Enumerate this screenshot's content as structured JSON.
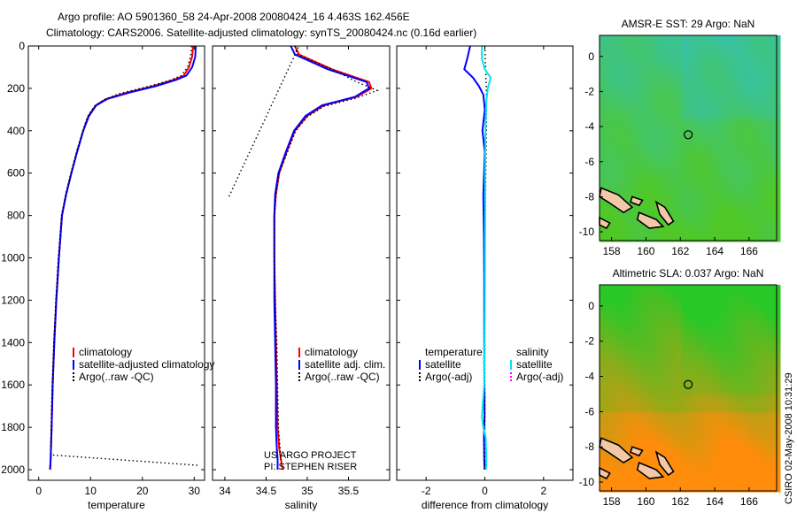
{
  "header": {
    "line1": "Argo profile: AO 5901360_58 24-Apr-2008 20080424_16 4.463S 162.456E",
    "line2": "Climatology: CARS2006. Satellite-adjusted climatology: synTS_20080424.nc (0.16d earlier)"
  },
  "footer_credit": {
    "line1": "US ARGO PROJECT",
    "line2": "PI: STEPHEN RISER"
  },
  "side_stamp": "CSIRO 02-May-2008 10:31:29",
  "colors": {
    "climatology": "#ff0000",
    "satellite": "#0000ff",
    "argo": "#000000",
    "satellite_diff": "#00e5ee",
    "argo_adj": "#ff00ff"
  },
  "chart_data": [
    {
      "type": "line",
      "xlabel": "temperature",
      "xlim": [
        -2,
        32
      ],
      "ylim": [
        2050,
        0
      ],
      "xticks": [
        0,
        10,
        20,
        30
      ],
      "yticks": [
        0,
        200,
        400,
        600,
        800,
        1000,
        1200,
        1400,
        1600,
        1800,
        2000
      ],
      "legend_position": "lower-left",
      "series": [
        {
          "name": "climatology",
          "style": "solid",
          "color": "#ff0000",
          "x": [
            29.8,
            29.6,
            29.0,
            28.0,
            26.0,
            22.0,
            17.0,
            13.0,
            11.0,
            9.6,
            8.6,
            7.4,
            6.3,
            5.3,
            4.5,
            3.9,
            3.4,
            3.0,
            2.7,
            2.5,
            2.3,
            2.2
          ],
          "y": [
            0,
            50,
            100,
            140,
            160,
            190,
            220,
            250,
            280,
            330,
            400,
            500,
            600,
            700,
            800,
            1000,
            1200,
            1400,
            1600,
            1800,
            1950,
            2000
          ]
        },
        {
          "name": "satellite-adjusted climatology",
          "style": "solid",
          "color": "#0000ff",
          "x": [
            30.3,
            30.2,
            29.6,
            28.5,
            26.5,
            22.5,
            17.5,
            13.2,
            11.1,
            9.7,
            8.6,
            7.4,
            6.3,
            5.3,
            4.5,
            3.9,
            3.4,
            3.0,
            2.7,
            2.5,
            2.3,
            2.2
          ],
          "y": [
            0,
            50,
            100,
            140,
            160,
            190,
            220,
            250,
            280,
            330,
            400,
            500,
            600,
            700,
            800,
            1000,
            1200,
            1400,
            1600,
            1800,
            1950,
            2000
          ]
        },
        {
          "name": "Argo(..raw -QC)",
          "style": "dotted",
          "color": "#000000",
          "x": [
            29.5,
            29.3,
            28.7,
            27.5,
            25.0,
            20.5,
            15.5,
            12.5,
            10.7,
            9.4,
            8.5,
            7.3,
            6.2,
            5.2,
            4.4,
            3.8,
            3.3,
            2.9,
            2.6,
            2.4,
            2.3,
            31.0
          ],
          "y": [
            0,
            50,
            100,
            140,
            165,
            195,
            225,
            255,
            285,
            335,
            400,
            500,
            600,
            700,
            800,
            1000,
            1200,
            1400,
            1600,
            1800,
            1930,
            1980
          ]
        }
      ]
    },
    {
      "type": "line",
      "xlabel": "salinity",
      "xlim": [
        33.85,
        36.0
      ],
      "ylim": [
        2050,
        0
      ],
      "xticks": [
        34,
        34.5,
        35,
        35.5
      ],
      "legend_position": "lower-right",
      "series": [
        {
          "name": "climatology",
          "style": "solid",
          "color": "#ff0000",
          "x": [
            34.85,
            34.9,
            35.3,
            35.75,
            35.78,
            35.6,
            35.2,
            35.0,
            34.85,
            34.75,
            34.66,
            34.62,
            34.6,
            34.6,
            34.61,
            34.62,
            34.63,
            34.64,
            34.66,
            34.68,
            34.7
          ],
          "y": [
            0,
            40,
            110,
            170,
            200,
            240,
            280,
            330,
            400,
            500,
            600,
            700,
            800,
            1000,
            1200,
            1400,
            1600,
            1800,
            1900,
            1950,
            2000
          ]
        },
        {
          "name": "satellite adj. clim.",
          "style": "solid",
          "color": "#0000ff",
          "x": [
            34.8,
            34.85,
            35.25,
            35.72,
            35.75,
            35.58,
            35.18,
            34.98,
            34.84,
            34.74,
            34.65,
            34.61,
            34.6,
            34.6,
            34.6,
            34.61,
            34.62,
            34.62,
            34.63,
            34.64,
            34.64
          ],
          "y": [
            0,
            40,
            110,
            170,
            200,
            240,
            280,
            330,
            400,
            500,
            600,
            700,
            800,
            1000,
            1200,
            1400,
            1600,
            1800,
            1900,
            1950,
            2000
          ]
        },
        {
          "name": "Argo(..raw -QC)",
          "style": "dotted",
          "color": "#000000",
          "x": [
            34.85,
            34.88,
            35.3,
            35.6,
            35.85,
            35.6,
            35.2,
            35.0,
            34.86,
            34.76,
            34.66,
            34.62,
            34.6,
            34.6,
            34.61,
            34.63,
            34.64,
            34.65,
            34.67,
            34.68
          ],
          "y": [
            0,
            40,
            110,
            170,
            210,
            245,
            285,
            335,
            400,
            500,
            600,
            700,
            800,
            1000,
            1200,
            1400,
            1600,
            1800,
            1900,
            1960
          ]
        },
        {
          "name": "Argo raw spur",
          "style": "dotted",
          "color": "#000000",
          "x": [
            34.05,
            34.9
          ],
          "y": [
            710,
            0
          ]
        }
      ]
    },
    {
      "type": "line",
      "xlabel": "difference from climatology",
      "xlim": [
        -3,
        3
      ],
      "ylim": [
        2050,
        0
      ],
      "xticks": [
        -2,
        0,
        2
      ],
      "legend_position": "lower",
      "legend_groups": {
        "temperature": "temperature",
        "salinity": "salinity"
      },
      "series": [
        {
          "name": "satellite",
          "group": "temperature",
          "style": "solid",
          "color": "#0000ff",
          "x": [
            -0.5,
            -0.6,
            -0.7,
            -0.4,
            -0.2,
            -0.05,
            0.0,
            -0.08,
            0.0,
            -0.05,
            -0.03,
            -0.02,
            -0.02,
            -0.02,
            -0.01,
            -0.01,
            -0.02,
            -0.03,
            -0.02,
            -0.01
          ],
          "y": [
            0,
            60,
            110,
            150,
            190,
            230,
            300,
            400,
            500,
            700,
            900,
            1100,
            1300,
            1500,
            1700,
            1750,
            1800,
            1850,
            1950,
            2000
          ]
        },
        {
          "name": "Argo(-adj)",
          "group": "temperature",
          "style": "dotted",
          "color": "#000000",
          "x": [
            0.0,
            0.05,
            0.05,
            0.0,
            0.0
          ],
          "y": [
            0,
            200,
            400,
            1000,
            2000
          ]
        },
        {
          "name": "satellite",
          "group": "salinity",
          "style": "solid",
          "color": "#00e5ee",
          "x": [
            -0.1,
            -0.1,
            0.0,
            0.2,
            0.1,
            0.05,
            0.03,
            0.02,
            0.01,
            0.01,
            0.0,
            -0.02,
            -0.1,
            -0.05,
            0.03,
            0.05,
            0.04
          ],
          "y": [
            0,
            60,
            110,
            150,
            200,
            260,
            330,
            400,
            600,
            800,
            1200,
            1600,
            1750,
            1800,
            1850,
            1950,
            2000
          ]
        },
        {
          "name": "Argo(-adj)",
          "group": "salinity",
          "style": "dotted",
          "color": "#ff00ff",
          "x": [],
          "y": []
        }
      ]
    },
    {
      "type": "heatmap",
      "title": "AMSR-E SST: 29 Argo: NaN",
      "xlim": [
        157.3,
        167.6
      ],
      "ylim": [
        -10.5,
        1.2
      ],
      "xticks": [
        158,
        160,
        162,
        164,
        166
      ],
      "yticks": [
        0,
        -2,
        -4,
        -6,
        -8,
        -10
      ],
      "marker": {
        "lon": 162.456,
        "lat": -4.463
      },
      "colormap": "sst"
    },
    {
      "type": "heatmap",
      "title": "Altimetric SLA: 0.037 Argo: NaN",
      "xlim": [
        157.3,
        167.6
      ],
      "ylim": [
        -10.5,
        1.2
      ],
      "xticks": [
        158,
        160,
        162,
        164,
        166
      ],
      "yticks": [
        0,
        -2,
        -4,
        -6,
        -8,
        -10
      ],
      "marker": {
        "lon": 162.456,
        "lat": -4.463
      },
      "colormap": "sla"
    }
  ]
}
